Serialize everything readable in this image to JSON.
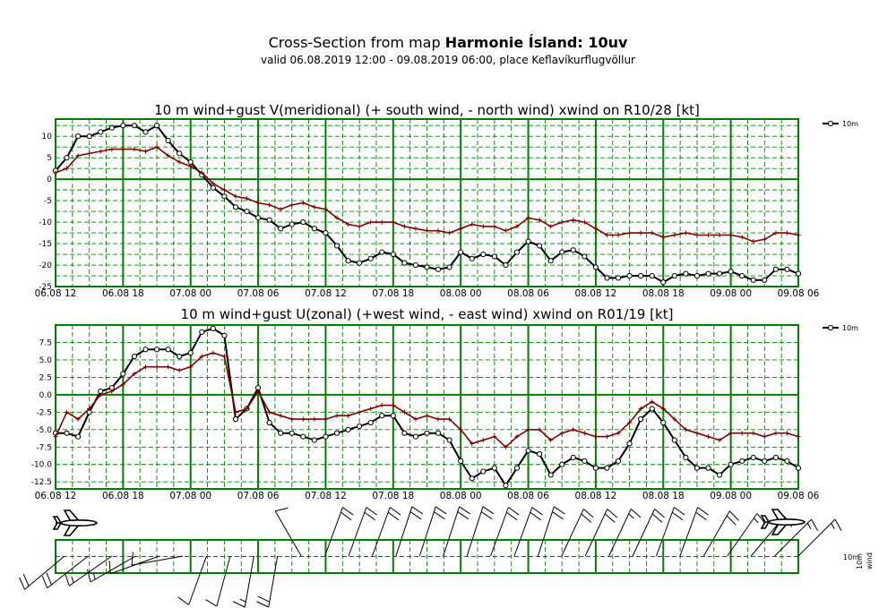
{
  "header": {
    "title_prefix": "Cross-Section from map ",
    "title_bold": "Harmonie Ísland: 10uv",
    "subtitle": "valid 06.08.2019 12:00 - 09.08.2019 06:00, place Keflavíkurflugvöllur"
  },
  "colors": {
    "grid": "#008000",
    "series_main": "#000000",
    "series_gust": "#800000"
  },
  "icons": {
    "start": "airplane-icon",
    "end": "airplane-icon"
  },
  "chart_data": [
    {
      "type": "line",
      "title": "10 m wind+gust V(meridional) (+ south wind, - north wind) xwind on R10/28 [kt]",
      "x_tick_labels": [
        "06.08 12",
        "06.08 18",
        "07.08 00",
        "07.08 06",
        "07.08 12",
        "07.08 18",
        "08.08 00",
        "08.08 06",
        "08.08 12",
        "08.08 18",
        "09.08 00",
        "09.08 06"
      ],
      "x_range_hours": [
        0,
        66
      ],
      "ylim": [
        -25,
        14
      ],
      "yticks": [
        -25,
        -20,
        -15,
        -10,
        -5,
        0,
        5,
        10
      ],
      "ytick_labels": [
        "-25",
        "-20",
        "-15",
        "-10",
        "-5",
        "0",
        "5",
        "10"
      ],
      "legend": [
        "10m"
      ],
      "legend_position": "right",
      "series": [
        {
          "name": "10m",
          "role": "main",
          "values": [
            2,
            5,
            10,
            10,
            11,
            12,
            12.5,
            12.5,
            11,
            12.5,
            9,
            6,
            4,
            1,
            -2,
            -4,
            -6.5,
            -7.5,
            -9,
            -9.5,
            -11.5,
            -10.5,
            -10,
            -11.5,
            -12.5,
            -15.5,
            -19,
            -19.5,
            -18.5,
            -17,
            -17.5,
            -19.5,
            -20,
            -20.5,
            -21,
            -20.5,
            -17,
            -18.5,
            -17.5,
            -18,
            -20,
            -17,
            -14.5,
            -15.5,
            -19,
            -17,
            -16.5,
            -18,
            -20.5,
            -23,
            -23,
            -22.5,
            -22.5,
            -22.5,
            -24,
            -22.5,
            -22,
            -22.5,
            -22,
            -22,
            -21.5,
            -22.5,
            -23.5,
            -23.5,
            -21,
            -21,
            -22
          ]
        },
        {
          "role": "gust",
          "values": [
            1.5,
            2.5,
            5.5,
            6,
            6.5,
            7,
            7,
            7,
            6.5,
            7.5,
            5.5,
            4,
            3,
            1.5,
            -1,
            -2.5,
            -4,
            -4.5,
            -5.5,
            -6,
            -7,
            -6,
            -5.5,
            -6.5,
            -7,
            -9,
            -10.5,
            -11,
            -10,
            -10,
            -10,
            -11,
            -11.5,
            -12,
            -12,
            -12.5,
            -11.5,
            -10.5,
            -11,
            -11,
            -12,
            -11,
            -9,
            -9.5,
            -11,
            -10,
            -9.5,
            -10,
            -11.5,
            -13,
            -13,
            -12.5,
            -12.5,
            -12.5,
            -13.5,
            -13,
            -12.5,
            -13,
            -13,
            -13,
            -13,
            -13.5,
            -14.5,
            -14,
            -12.5,
            -12.5,
            -13
          ]
        }
      ]
    },
    {
      "type": "line",
      "title": "10 m wind+gust U(zonal) (+west wind, - east wind) xwind on R01/19 [kt]",
      "x_tick_labels": [
        "06.08 12",
        "06.08 18",
        "07.08 00",
        "07.08 06",
        "07.08 12",
        "07.08 18",
        "08.08 00",
        "08.08 06",
        "08.08 12",
        "08.08 18",
        "09.08 00",
        "09.08 06"
      ],
      "x_range_hours": [
        0,
        66
      ],
      "ylim": [
        -13.5,
        10
      ],
      "yticks": [
        -12.5,
        -10,
        -7.5,
        -5,
        -2.5,
        0,
        2.5,
        5,
        7.5
      ],
      "ytick_labels": [
        "-12.5",
        "-10.0",
        "-7.5",
        "-5.0",
        "-2.5",
        "0.0",
        "2.5",
        "5.0",
        "7.5"
      ],
      "legend": [
        "10m"
      ],
      "legend_position": "right",
      "series": [
        {
          "name": "10m",
          "role": "main",
          "values": [
            -5.5,
            -5.5,
            -6,
            -2.5,
            0.5,
            1,
            3,
            5.5,
            6.5,
            6.5,
            6.5,
            5.5,
            6,
            9,
            9.5,
            8.5,
            -3.5,
            -2,
            1,
            -4,
            -5.5,
            -5.5,
            -6,
            -6.5,
            -6,
            -5.5,
            -5,
            -4.5,
            -4,
            -3,
            -3,
            -5.5,
            -6,
            -5.5,
            -5.5,
            -6.5,
            -9.5,
            -12,
            -11,
            -10.5,
            -13,
            -10.5,
            -8,
            -8.5,
            -11.5,
            -10,
            -9,
            -9.5,
            -10.5,
            -10.5,
            -9.5,
            -7,
            -3.5,
            -2,
            -4,
            -6.5,
            -9,
            -10.5,
            -10.5,
            -11.5,
            -10,
            -9.5,
            -9,
            -9.5,
            -9,
            -9.5,
            -10.5
          ]
        },
        {
          "role": "gust",
          "values": [
            -6,
            -2.5,
            -3.5,
            -2,
            0,
            0.5,
            1.5,
            3,
            4,
            4,
            4,
            3.5,
            4,
            5.5,
            6,
            5.5,
            -2.5,
            -2,
            0.5,
            -2.5,
            -3,
            -3.5,
            -3.5,
            -3.5,
            -3.5,
            -3,
            -3,
            -2.5,
            -2,
            -1.5,
            -1.5,
            -2.5,
            -3.5,
            -3,
            -3.5,
            -3.5,
            -5,
            -7,
            -6.5,
            -6,
            -7.5,
            -6,
            -5,
            -5,
            -6.5,
            -5.5,
            -5,
            -5.5,
            -6,
            -6,
            -5.5,
            -4,
            -2,
            -1,
            -2,
            -3.5,
            -5,
            -5.5,
            -6,
            -6.5,
            -5.5,
            -5.5,
            -5.5,
            -6,
            -5.5,
            -5.5,
            -6
          ]
        }
      ]
    }
  ],
  "wind_panel": {
    "legend_line1": "10m",
    "legend_line2": "wind",
    "legend_line3": "10m",
    "barbs": [
      {
        "s": 22,
        "d": 230
      },
      {
        "s": 20,
        "d": 232
      },
      {
        "s": 18,
        "d": 235
      },
      {
        "s": 15,
        "d": 240
      },
      {
        "s": 12,
        "d": 250
      },
      {
        "s": 10,
        "d": 260
      },
      {
        "s": 10,
        "d": 200
      },
      {
        "s": 14,
        "d": 195
      },
      {
        "s": 18,
        "d": 190
      },
      {
        "s": 20,
        "d": 190
      },
      {
        "s": 12,
        "d": 330
      },
      {
        "s": 22,
        "d": 20
      },
      {
        "s": 22,
        "d": 20
      },
      {
        "s": 22,
        "d": 20
      },
      {
        "s": 24,
        "d": 18
      },
      {
        "s": 24,
        "d": 18
      },
      {
        "s": 24,
        "d": 18
      },
      {
        "s": 22,
        "d": 18
      },
      {
        "s": 22,
        "d": 20
      },
      {
        "s": 22,
        "d": 20
      },
      {
        "s": 22,
        "d": 18
      },
      {
        "s": 24,
        "d": 25
      },
      {
        "s": 20,
        "d": 25
      },
      {
        "s": 18,
        "d": 25
      },
      {
        "s": 20,
        "d": 25
      },
      {
        "s": 20,
        "d": 20
      },
      {
        "s": 20,
        "d": 20
      },
      {
        "s": 20,
        "d": 30
      },
      {
        "s": 18,
        "d": 35
      },
      {
        "s": 18,
        "d": 40
      },
      {
        "s": 18,
        "d": 45
      },
      {
        "s": 18,
        "d": 45
      }
    ]
  }
}
